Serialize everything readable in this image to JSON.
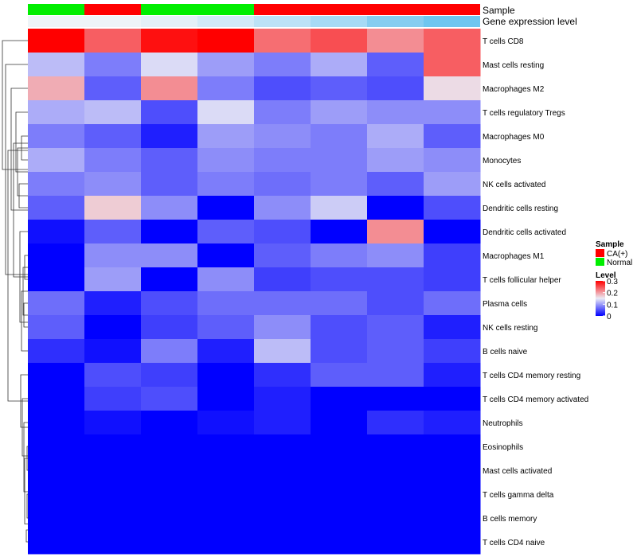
{
  "chart_data": {
    "type": "heatmap",
    "rows": [
      "T cells CD8",
      "Mast cells resting",
      "Macrophages M2",
      "T cells regulatory  Tregs",
      "Macrophages M0",
      "Monocytes",
      "NK cells activated",
      "Dendritic cells resting",
      "Dendritic cells activated",
      "Macrophages M1",
      "T cells follicular helper",
      "Plasma cells",
      "NK cells resting",
      "B cells naive",
      "T cells CD4 memory resting",
      "T cells CD4 memory activated",
      "Neutrophils",
      "Eosinophils",
      "Mast cells activated",
      "T cells gamma delta",
      "B cells memory",
      "T cells CD4 naive"
    ],
    "columns": 8,
    "values": [
      [
        0.3,
        0.24,
        0.29,
        0.3,
        0.23,
        0.25,
        0.21,
        0.24
      ],
      [
        0.12,
        0.08,
        0.14,
        0.1,
        0.08,
        0.11,
        0.06,
        0.24
      ],
      [
        0.19,
        0.06,
        0.21,
        0.08,
        0.05,
        0.06,
        0.05,
        0.16
      ],
      [
        0.11,
        0.12,
        0.05,
        0.14,
        0.08,
        0.1,
        0.09,
        0.09
      ],
      [
        0.08,
        0.06,
        0.02,
        0.1,
        0.09,
        0.08,
        0.11,
        0.06
      ],
      [
        0.11,
        0.08,
        0.06,
        0.09,
        0.08,
        0.08,
        0.1,
        0.09
      ],
      [
        0.08,
        0.09,
        0.06,
        0.08,
        0.07,
        0.08,
        0.06,
        0.1
      ],
      [
        0.06,
        0.17,
        0.09,
        0.0,
        0.09,
        0.13,
        0.0,
        0.05
      ],
      [
        0.01,
        0.06,
        0.0,
        0.06,
        0.05,
        0.0,
        0.21,
        0.0
      ],
      [
        0.0,
        0.09,
        0.09,
        0.0,
        0.06,
        0.08,
        0.09,
        0.04
      ],
      [
        0.0,
        0.1,
        0.0,
        0.09,
        0.04,
        0.05,
        0.05,
        0.04
      ],
      [
        0.07,
        0.02,
        0.05,
        0.07,
        0.07,
        0.07,
        0.05,
        0.07
      ],
      [
        0.06,
        0.0,
        0.04,
        0.06,
        0.09,
        0.05,
        0.06,
        0.02
      ],
      [
        0.03,
        0.01,
        0.08,
        0.02,
        0.12,
        0.05,
        0.06,
        0.04
      ],
      [
        0.0,
        0.05,
        0.04,
        0.0,
        0.03,
        0.06,
        0.06,
        0.02
      ],
      [
        0.0,
        0.04,
        0.05,
        0.0,
        0.02,
        0.0,
        0.0,
        0.0
      ],
      [
        0.0,
        0.01,
        0.0,
        0.01,
        0.02,
        0.0,
        0.03,
        0.02
      ],
      [
        0.0,
        0.0,
        0.0,
        0.0,
        0.0,
        0.0,
        0.0,
        0.0
      ],
      [
        0.0,
        0.0,
        0.0,
        0.0,
        0.0,
        0.0,
        0.0,
        0.0
      ],
      [
        0.0,
        0.0,
        0.0,
        0.0,
        0.0,
        0.0,
        0.0,
        0.0
      ],
      [
        0.0,
        0.0,
        0.0,
        0.0,
        0.0,
        0.0,
        0.0,
        0.0
      ],
      [
        0.0,
        0.0,
        0.0,
        0.0,
        0.0,
        0.0,
        0.0,
        0.0
      ]
    ],
    "annotations": {
      "sample": {
        "label": "Sample",
        "values": [
          "Normal",
          "CA(+)",
          "Normal",
          "Normal",
          "CA(+)",
          "CA(+)",
          "CA(+)",
          "CA(+)"
        ]
      },
      "gene_expression_level": {
        "label": "Gene expression level",
        "colors": [
          "#eef4f8",
          "#eef4f8",
          "#e4f0f8",
          "#d2eaf8",
          "#bce2f6",
          "#a6daf5",
          "#86cdf0",
          "#6ec6ef"
        ]
      }
    },
    "legends": {
      "sample": {
        "title": "Sample",
        "entries": [
          {
            "label": "CA(+)",
            "color": "#ff0000"
          },
          {
            "label": "Normal",
            "color": "#00ee00"
          }
        ]
      },
      "level": {
        "title": "Level",
        "ticks": [
          "0.3",
          "0.2",
          "0.1",
          "0"
        ],
        "range": [
          0,
          0.3
        ]
      }
    },
    "colorscale": {
      "low": "#0000ff",
      "mid": "#ebebf5",
      "high": "#ff0000",
      "mid_value": 0.15
    }
  }
}
